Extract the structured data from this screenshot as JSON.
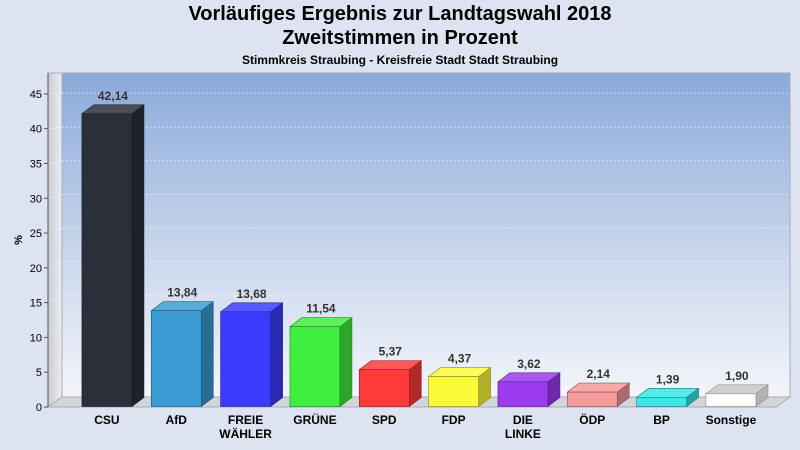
{
  "header": {
    "title_line1": "Vorläufiges Ergebnis zur Landtagswahl 2018",
    "title_line2": "Zweitstimmen in Prozent",
    "subtitle": "Stimmkreis Straubing - Kreisfreie Stadt Stadt Straubing"
  },
  "chart_data": {
    "type": "bar",
    "title": "Vorläufiges Ergebnis zur Landtagswahl 2018 Zweitstimmen in Prozent",
    "subtitle": "Stimmkreis Straubing - Kreisfreie Stadt Stadt Straubing",
    "xlabel": "",
    "ylabel": "%",
    "ylim": [
      0,
      48
    ],
    "yticks": [
      0,
      5,
      10,
      15,
      20,
      25,
      30,
      35,
      40,
      45
    ],
    "grid": true,
    "legend": "none",
    "categories": [
      "CSU",
      "AfD",
      "FREIE WÄHLER",
      "GRÜNE",
      "SPD",
      "FDP",
      "DIE LINKE",
      "ÖDP",
      "BP",
      "Sonstige"
    ],
    "category_label_lines": [
      [
        "CSU"
      ],
      [
        "AfD"
      ],
      [
        "FREIE",
        "WÄHLER"
      ],
      [
        "GRÜNE"
      ],
      [
        "SPD"
      ],
      [
        "FDP"
      ],
      [
        "DIE",
        "LINKE"
      ],
      [
        "ÖDP"
      ],
      [
        "BP"
      ],
      [
        "Sonstige"
      ]
    ],
    "values": [
      42.14,
      13.84,
      13.68,
      11.54,
      5.37,
      4.37,
      3.62,
      2.14,
      1.39,
      1.9
    ],
    "value_labels": [
      "42,14",
      "13,84",
      "13,68",
      "11,54",
      "5,37",
      "4,37",
      "3,62",
      "2,14",
      "1,39",
      "1,90"
    ],
    "colors": [
      "#2b2f3a",
      "#3a9bd4",
      "#3b3bff",
      "#3fef3f",
      "#ff3a3a",
      "#fbfb3a",
      "#9b3bee",
      "#f59a9a",
      "#3ae6e6",
      "#ffffff"
    ]
  }
}
